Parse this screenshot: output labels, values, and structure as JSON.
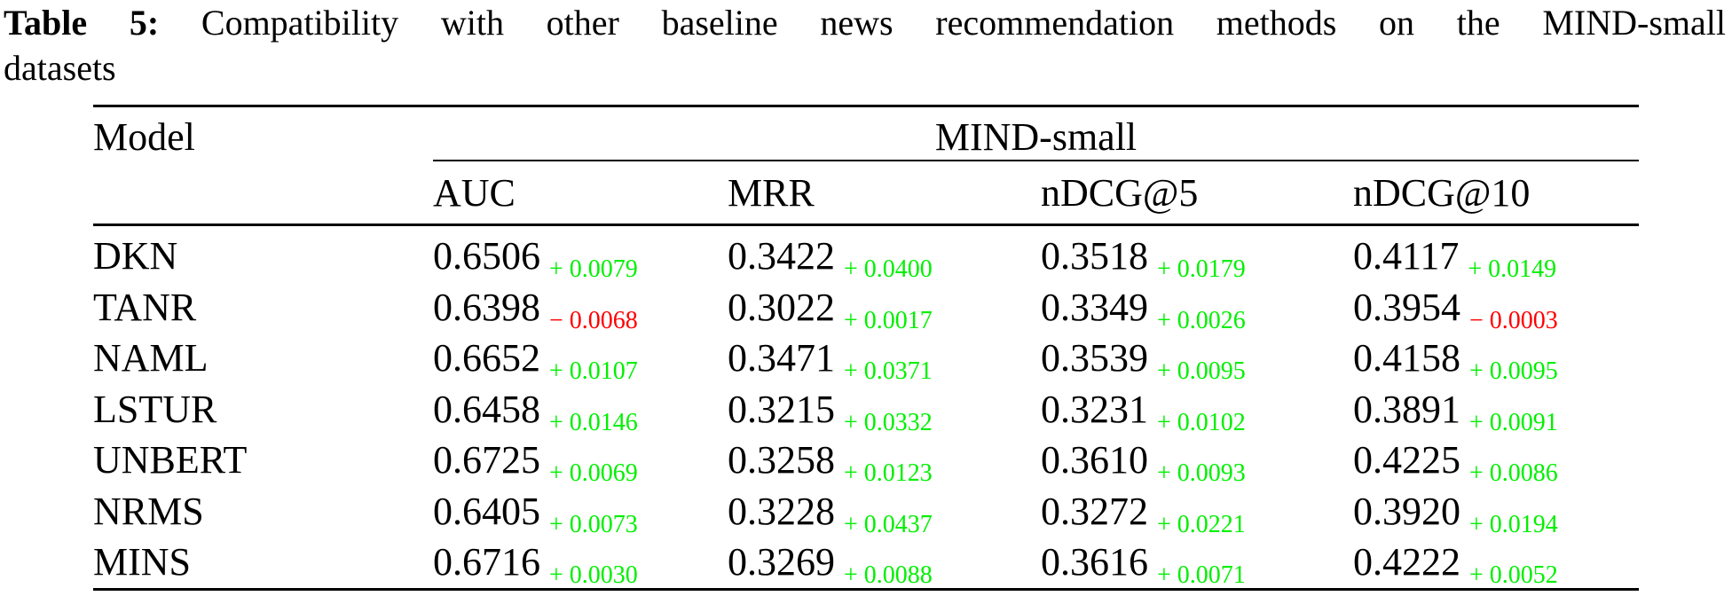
{
  "caption": {
    "label": "Table 5:",
    "line1": "Compatibility with other baseline news recommendation methods on the MIND-small",
    "line2": "datasets"
  },
  "colors": {
    "positive": "#00F000",
    "negative": "#FF0000"
  },
  "table": {
    "model_header": "Model",
    "group_header": "MIND-small",
    "metric_headers": [
      "AUC",
      "MRR",
      "nDCG@5",
      "nDCG@10"
    ],
    "rows": [
      {
        "model": "DKN",
        "metrics": [
          {
            "value": "0.6506",
            "delta": "+ 0.0079",
            "dir": "up"
          },
          {
            "value": "0.3422",
            "delta": "+ 0.0400",
            "dir": "up"
          },
          {
            "value": "0.3518",
            "delta": "+ 0.0179",
            "dir": "up"
          },
          {
            "value": "0.4117",
            "delta": "+ 0.0149",
            "dir": "up"
          }
        ]
      },
      {
        "model": "TANR",
        "metrics": [
          {
            "value": "0.6398",
            "delta": "− 0.0068",
            "dir": "down"
          },
          {
            "value": "0.3022",
            "delta": "+ 0.0017",
            "dir": "up"
          },
          {
            "value": "0.3349",
            "delta": "+ 0.0026",
            "dir": "up"
          },
          {
            "value": "0.3954",
            "delta": "− 0.0003",
            "dir": "down"
          }
        ]
      },
      {
        "model": "NAML",
        "metrics": [
          {
            "value": "0.6652",
            "delta": "+ 0.0107",
            "dir": "up"
          },
          {
            "value": "0.3471",
            "delta": "+ 0.0371",
            "dir": "up"
          },
          {
            "value": "0.3539",
            "delta": "+ 0.0095",
            "dir": "up"
          },
          {
            "value": "0.4158",
            "delta": "+ 0.0095",
            "dir": "up"
          }
        ]
      },
      {
        "model": "LSTUR",
        "metrics": [
          {
            "value": "0.6458",
            "delta": "+ 0.0146",
            "dir": "up"
          },
          {
            "value": "0.3215",
            "delta": "+ 0.0332",
            "dir": "up"
          },
          {
            "value": "0.3231",
            "delta": "+ 0.0102",
            "dir": "up"
          },
          {
            "value": "0.3891",
            "delta": "+ 0.0091",
            "dir": "up"
          }
        ]
      },
      {
        "model": "UNBERT",
        "metrics": [
          {
            "value": "0.6725",
            "delta": "+ 0.0069",
            "dir": "up"
          },
          {
            "value": "0.3258",
            "delta": "+ 0.0123",
            "dir": "up"
          },
          {
            "value": "0.3610",
            "delta": "+ 0.0093",
            "dir": "up"
          },
          {
            "value": "0.4225",
            "delta": "+ 0.0086",
            "dir": "up"
          }
        ]
      },
      {
        "model": "NRMS",
        "metrics": [
          {
            "value": "0.6405",
            "delta": "+ 0.0073",
            "dir": "up"
          },
          {
            "value": "0.3228",
            "delta": "+ 0.0437",
            "dir": "up"
          },
          {
            "value": "0.3272",
            "delta": "+ 0.0221",
            "dir": "up"
          },
          {
            "value": "0.3920",
            "delta": "+ 0.0194",
            "dir": "up"
          }
        ]
      },
      {
        "model": "MINS",
        "metrics": [
          {
            "value": "0.6716",
            "delta": "+ 0.0030",
            "dir": "up"
          },
          {
            "value": "0.3269",
            "delta": "+ 0.0088",
            "dir": "up"
          },
          {
            "value": "0.3616",
            "delta": "+ 0.0071",
            "dir": "up"
          },
          {
            "value": "0.4222",
            "delta": "+ 0.0052",
            "dir": "up"
          }
        ]
      }
    ]
  }
}
